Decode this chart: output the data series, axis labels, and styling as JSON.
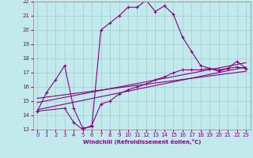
{
  "xlabel": "Windchill (Refroidissement éolien,°C)",
  "xlim": [
    -0.5,
    23.5
  ],
  "ylim": [
    13,
    22
  ],
  "xticks": [
    0,
    1,
    2,
    3,
    4,
    5,
    6,
    7,
    8,
    9,
    10,
    11,
    12,
    13,
    14,
    15,
    16,
    17,
    18,
    19,
    20,
    21,
    22,
    23
  ],
  "yticks": [
    13,
    14,
    15,
    16,
    17,
    18,
    19,
    20,
    21,
    22
  ],
  "bg_color": "#c2eaed",
  "line_color": "#880088",
  "grid_color": "#a0cccc",
  "line1_x": [
    0,
    1,
    2,
    3,
    4,
    5,
    6,
    7,
    8,
    9,
    10,
    11,
    12,
    13,
    14,
    15,
    16,
    17,
    18,
    19,
    20,
    21,
    22,
    23
  ],
  "line1_y": [
    14.3,
    15.6,
    16.5,
    17.5,
    14.5,
    13.1,
    13.2,
    20.0,
    20.5,
    21.0,
    21.6,
    21.6,
    22.1,
    21.3,
    21.7,
    21.1,
    19.5,
    18.5,
    17.5,
    17.3,
    17.1,
    17.3,
    17.8,
    17.3
  ],
  "line2_x": [
    0,
    3,
    4,
    5,
    6,
    7,
    8,
    9,
    10,
    11,
    12,
    13,
    14,
    15,
    16,
    17,
    18,
    19,
    20,
    21,
    22,
    23
  ],
  "line2_y": [
    14.3,
    14.5,
    13.5,
    13.0,
    13.3,
    14.8,
    15.0,
    15.5,
    15.8,
    16.0,
    16.2,
    16.5,
    16.7,
    17.0,
    17.2,
    17.2,
    17.2,
    17.3,
    17.2,
    17.3,
    17.4,
    17.3
  ],
  "line3_x": [
    0,
    23
  ],
  "line3_y": [
    14.4,
    17.4
  ],
  "line4_x": [
    0,
    23
  ],
  "line4_y": [
    14.9,
    17.7
  ],
  "line5_x": [
    0,
    23
  ],
  "line5_y": [
    15.2,
    17.1
  ]
}
